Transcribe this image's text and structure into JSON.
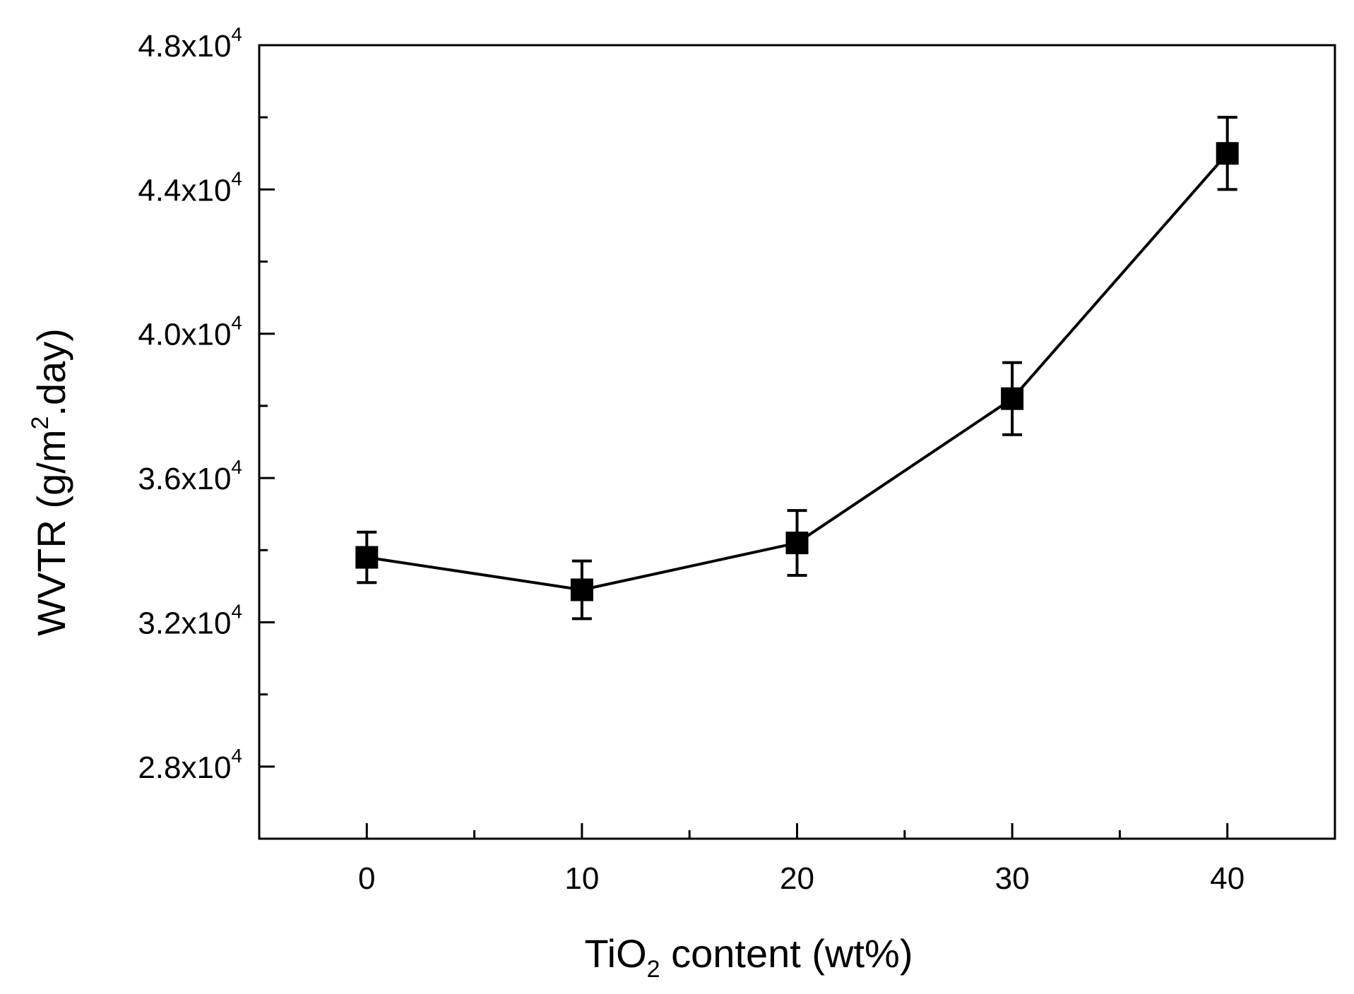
{
  "chart_data": {
    "type": "line",
    "title": "",
    "xlabel": {
      "main": "TiO",
      "sub": "2",
      "rest": " content (wt%)"
    },
    "ylabel": {
      "main": "WVTR (g/m",
      "sup": "2",
      "rest": ".day)"
    },
    "xlim": [
      -5,
      45
    ],
    "ylim": [
      26000,
      48000
    ],
    "x_ticks": [
      0,
      10,
      20,
      30,
      40
    ],
    "x_tick_labels": [
      "0",
      "10",
      "20",
      "30",
      "40"
    ],
    "x_minor_ticks": [
      5,
      15,
      25,
      35
    ],
    "y_ticks": [
      28000,
      32000,
      36000,
      40000,
      44000,
      48000
    ],
    "y_tick_labels": [
      {
        "mantissa": "2.8x10",
        "exp": "4"
      },
      {
        "mantissa": "3.2x10",
        "exp": "4"
      },
      {
        "mantissa": "3.6x10",
        "exp": "4"
      },
      {
        "mantissa": "4.0x10",
        "exp": "4"
      },
      {
        "mantissa": "4.4x10",
        "exp": "4"
      },
      {
        "mantissa": "4.8x10",
        "exp": "4"
      }
    ],
    "y_minor_ticks": [
      30000,
      34000,
      38000,
      42000,
      46000
    ],
    "grid": false,
    "series": [
      {
        "name": "WVTR",
        "marker": "square",
        "color": "#000000",
        "x": [
          0,
          10,
          20,
          30,
          40
        ],
        "y": [
          33800,
          32900,
          34200,
          38200,
          45000
        ],
        "error": [
          700,
          800,
          900,
          1000,
          1000
        ]
      }
    ]
  }
}
